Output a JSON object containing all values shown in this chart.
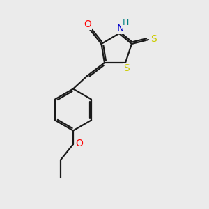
{
  "bg_color": "#ebebeb",
  "bond_color": "#1a1a1a",
  "line_width": 1.6,
  "atoms": {
    "O": {
      "color": "#ff0000"
    },
    "N": {
      "color": "#0000cc"
    },
    "S": {
      "color": "#cccc00"
    },
    "H": {
      "color": "#008080"
    },
    "C": {
      "color": "#1a1a1a"
    }
  },
  "label_fontsize": 10,
  "label_fontsize_small": 9
}
